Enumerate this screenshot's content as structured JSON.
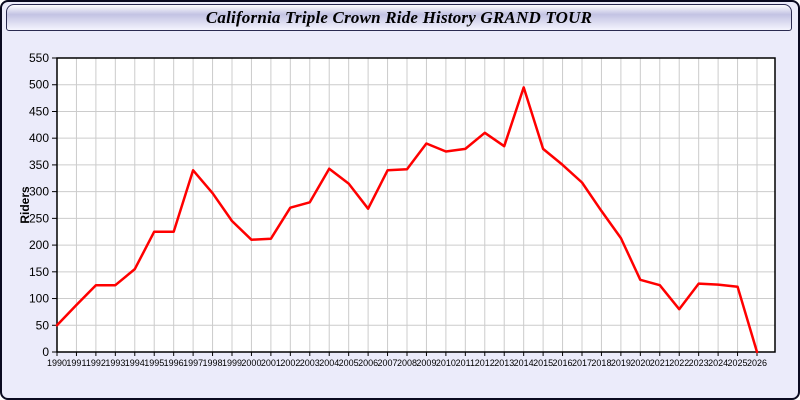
{
  "page": {
    "title": "California Triple Crown Ride History GRAND TOUR"
  },
  "chart_data": {
    "type": "line",
    "title": "California Triple Crown Ride History GRAND TOUR",
    "xlabel": "",
    "ylabel": "Riders",
    "x": [
      1990,
      1991,
      1992,
      1993,
      1994,
      1995,
      1996,
      1997,
      1998,
      1999,
      2000,
      2001,
      2002,
      2003,
      2004,
      2005,
      2006,
      2007,
      2008,
      2009,
      2010,
      2011,
      2012,
      2013,
      2014,
      2015,
      2016,
      2017,
      2018,
      2019,
      2020,
      2021,
      2022,
      2023,
      2024,
      2025,
      2026
    ],
    "series": [
      {
        "name": "Riders",
        "values": [
          50,
          88,
          125,
          125,
          155,
          225,
          225,
          340,
          297,
          245,
          210,
          212,
          270,
          280,
          343,
          315,
          268,
          340,
          342,
          390,
          375,
          380,
          410,
          385,
          495,
          380,
          350,
          317,
          264,
          213,
          135,
          125,
          80,
          128,
          126,
          122,
          0
        ]
      }
    ],
    "ylim": [
      0,
      550
    ],
    "ytick_step": 50,
    "xtick_step": 1,
    "grid": true,
    "legend_position": "none",
    "line_color": "#ff0000",
    "grid_color": "#cccccc",
    "axis_color": "#000000",
    "plot_bg": "#ffffff",
    "page_bg": "#ebebfa"
  }
}
